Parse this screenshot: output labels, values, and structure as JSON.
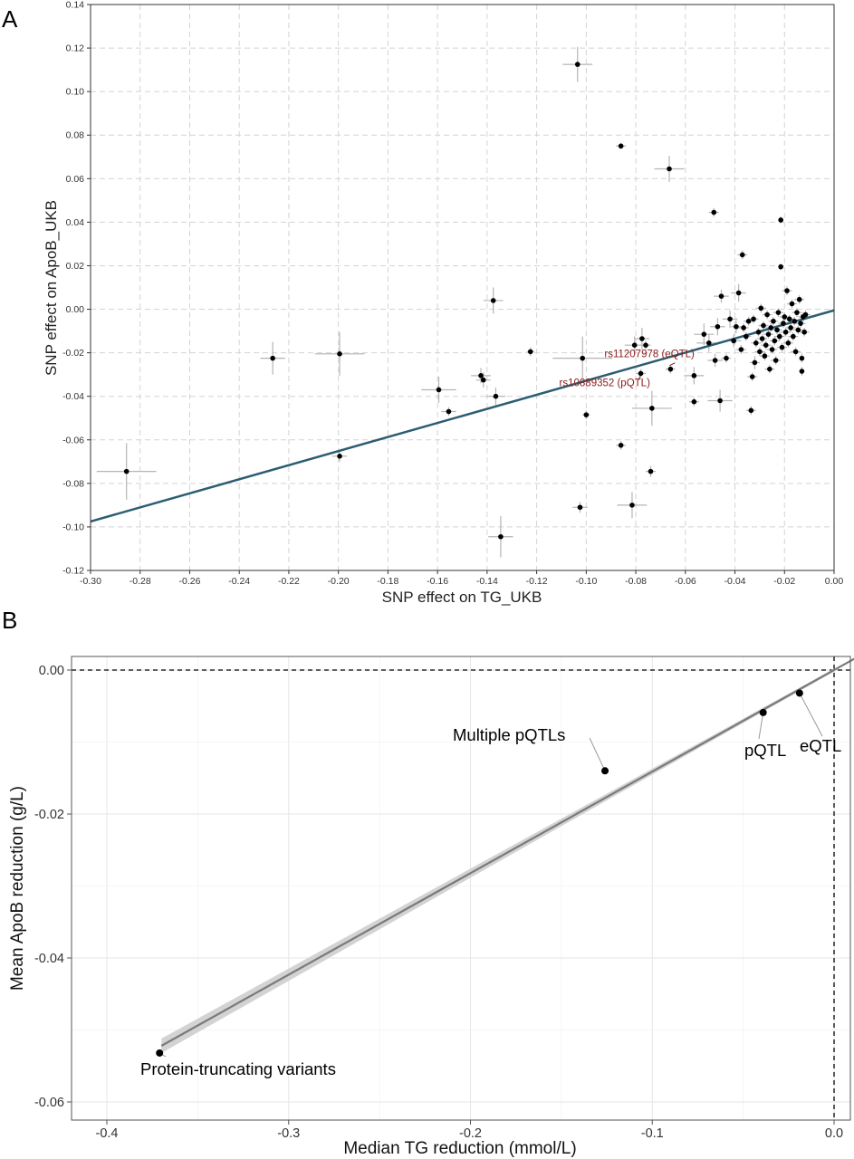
{
  "panels": {
    "a": {
      "letter": "A",
      "xlabel": "SNP effect on TG_UKB",
      "ylabel": "SNP effect on ApoB_UKB"
    },
    "b": {
      "letter": "B",
      "xlabel": "Median TG reduction (mmol/L)",
      "ylabel": "Mean ApoB reduction (g/L)"
    }
  },
  "chart_data": [
    {
      "type": "scatter",
      "title": "",
      "xlabel": "SNP effect on TG_UKB",
      "ylabel": "SNP effect on ApoB_UKB",
      "xlim": [
        -0.3,
        0.0
      ],
      "ylim": [
        -0.12,
        0.14
      ],
      "xticks": [
        -0.3,
        -0.28,
        -0.26,
        -0.24,
        -0.22,
        -0.2,
        -0.18,
        -0.16,
        -0.14,
        -0.12,
        -0.1,
        -0.08,
        -0.06,
        -0.04,
        -0.02,
        0.0
      ],
      "xtick_labels": [
        "-0.30",
        "-0.28",
        "-0.26",
        "-0.24",
        "-0.22",
        "-0.20",
        "-0.18",
        "-0.16",
        "-0.14",
        "-0.12",
        "-0.10",
        "-0.08",
        "-0.06",
        "-0.04",
        "-0.02",
        "0.00"
      ],
      "yticks": [
        -0.12,
        -0.1,
        -0.08,
        -0.06,
        -0.04,
        -0.02,
        0.0,
        0.02,
        0.04,
        0.06,
        0.08,
        0.1,
        0.12,
        0.14
      ],
      "ytick_labels": [
        "-0.12",
        "-0.10",
        "-0.08",
        "-0.06",
        "-0.04",
        "-0.02",
        "0.00",
        "0.02",
        "0.04",
        "0.06",
        "0.08",
        "0.10",
        "0.12",
        "0.14"
      ],
      "grid": true,
      "grid_style": "dashed",
      "colors": {
        "points": "#000000",
        "errorbars": "#b4b4b4",
        "fit_line": "#2b5d73",
        "annotation": "#8b1a1a",
        "grid": "#d4d4d4"
      },
      "fit_line": {
        "x": [
          -0.3,
          0.0
        ],
        "y": [
          -0.0975,
          -0.0005
        ]
      },
      "points": [
        {
          "x": -0.2855,
          "y": -0.0745,
          "xerr": 0.012,
          "yerr": 0.013
        },
        {
          "x": -0.2265,
          "y": -0.0225,
          "xerr": 0.005,
          "yerr": 0.0075
        },
        {
          "x": -0.1995,
          "y": -0.0205,
          "xerr": 0.01,
          "yerr": 0.01
        },
        {
          "x": -0.1995,
          "y": -0.0675,
          "xerr": 0.003,
          "yerr": 0.0025
        },
        {
          "x": -0.1595,
          "y": -0.037,
          "xerr": 0.007,
          "yerr": 0.006
        },
        {
          "x": -0.1555,
          "y": -0.047,
          "xerr": 0.003,
          "yerr": 0.002
        },
        {
          "x": -0.1425,
          "y": -0.0305,
          "xerr": 0.004,
          "yerr": 0.0035
        },
        {
          "x": -0.1415,
          "y": -0.0325,
          "xerr": 0.003,
          "yerr": 0.0035
        },
        {
          "x": -0.1375,
          "y": 0.004,
          "xerr": 0.004,
          "yerr": 0.006
        },
        {
          "x": -0.1365,
          "y": -0.04,
          "xerr": 0.004,
          "yerr": 0.004
        },
        {
          "x": -0.1345,
          "y": -0.1045,
          "xerr": 0.005,
          "yerr": 0.0095
        },
        {
          "x": -0.1225,
          "y": -0.0195,
          "xerr": 0.0015,
          "yerr": 0.002
        },
        {
          "x": -0.1035,
          "y": 0.1125,
          "xerr": 0.006,
          "yerr": 0.008
        },
        {
          "x": -0.1025,
          "y": -0.091,
          "xerr": 0.003,
          "yerr": 0.0025
        },
        {
          "x": -0.1015,
          "y": -0.0225,
          "xerr": 0.012,
          "yerr": 0.01
        },
        {
          "x": -0.1,
          "y": -0.0485,
          "xerr": 0.0015,
          "yerr": 0.002
        },
        {
          "x": -0.086,
          "y": -0.0625,
          "xerr": 0.002,
          "yerr": 0.002
        },
        {
          "x": -0.086,
          "y": 0.075,
          "xerr": 0.002,
          "yerr": 0.0015
        },
        {
          "x": -0.0815,
          "y": -0.09,
          "xerr": 0.006,
          "yerr": 0.006
        },
        {
          "x": -0.0805,
          "y": -0.0165,
          "xerr": 0.004,
          "yerr": 0.004
        },
        {
          "x": -0.078,
          "y": -0.0295,
          "xerr": 0.002,
          "yerr": 0.002
        },
        {
          "x": -0.0775,
          "y": -0.0135,
          "xerr": 0.003,
          "yerr": 0.005
        },
        {
          "x": -0.076,
          "y": -0.0165,
          "xerr": 0.002,
          "yerr": 0.002
        },
        {
          "x": -0.074,
          "y": -0.0745,
          "xerr": 0.002,
          "yerr": 0.0025
        },
        {
          "x": -0.0735,
          "y": -0.0455,
          "xerr": 0.008,
          "yerr": 0.008
        },
        {
          "x": -0.0665,
          "y": 0.0645,
          "xerr": 0.006,
          "yerr": 0.006
        },
        {
          "x": -0.066,
          "y": -0.0275,
          "xerr": 0.002,
          "yerr": 0.002
        },
        {
          "x": -0.0565,
          "y": -0.0425,
          "xerr": 0.002,
          "yerr": 0.002
        },
        {
          "x": -0.0565,
          "y": -0.0305,
          "xerr": 0.004,
          "yerr": 0.004
        },
        {
          "x": -0.0525,
          "y": -0.0115,
          "xerr": 0.004,
          "yerr": 0.005
        },
        {
          "x": -0.0505,
          "y": -0.0155,
          "xerr": 0.005,
          "yerr": 0.004
        },
        {
          "x": -0.0485,
          "y": 0.0445,
          "xerr": 0.002,
          "yerr": 0.002
        },
        {
          "x": -0.048,
          "y": -0.0235,
          "xerr": 0.003,
          "yerr": 0.003
        },
        {
          "x": -0.047,
          "y": -0.008,
          "xerr": 0.003,
          "yerr": 0.004
        },
        {
          "x": -0.046,
          "y": -0.042,
          "xerr": 0.005,
          "yerr": 0.005
        },
        {
          "x": -0.0455,
          "y": 0.006,
          "xerr": 0.003,
          "yerr": 0.003
        },
        {
          "x": -0.0435,
          "y": -0.0225,
          "xerr": 0.002,
          "yerr": 0.002
        },
        {
          "x": -0.042,
          "y": -0.0045,
          "xerr": 0.003,
          "yerr": 0.004
        },
        {
          "x": -0.0405,
          "y": -0.0145,
          "xerr": 0.003,
          "yerr": 0.003
        },
        {
          "x": -0.0395,
          "y": -0.008,
          "xerr": 0.002,
          "yerr": 0.003
        },
        {
          "x": -0.0385,
          "y": 0.0075,
          "xerr": 0.003,
          "yerr": 0.004
        },
        {
          "x": -0.0375,
          "y": -0.0185,
          "xerr": 0.002,
          "yerr": 0.002
        },
        {
          "x": -0.037,
          "y": 0.025,
          "xerr": 0.002,
          "yerr": 0.002
        },
        {
          "x": -0.0365,
          "y": -0.0085,
          "xerr": 0.002,
          "yerr": 0.002
        },
        {
          "x": -0.0355,
          "y": -0.0125,
          "xerr": 0.002,
          "yerr": 0.002
        },
        {
          "x": -0.0345,
          "y": -0.0055,
          "xerr": 0.002,
          "yerr": 0.002
        },
        {
          "x": -0.0335,
          "y": -0.0465,
          "xerr": 0.002,
          "yerr": 0.002
        },
        {
          "x": -0.033,
          "y": -0.031,
          "xerr": 0.002,
          "yerr": 0.002
        },
        {
          "x": -0.0325,
          "y": -0.0045,
          "xerr": 0.002,
          "yerr": 0.002
        },
        {
          "x": -0.032,
          "y": -0.0245,
          "xerr": 0.002,
          "yerr": 0.003
        },
        {
          "x": -0.0315,
          "y": -0.0155,
          "xerr": 0.002,
          "yerr": 0.002
        },
        {
          "x": -0.0305,
          "y": -0.0105,
          "xerr": 0.002,
          "yerr": 0.002
        },
        {
          "x": -0.03,
          "y": -0.0195,
          "xerr": 0.002,
          "yerr": 0.002
        },
        {
          "x": -0.0295,
          "y": 0.0005,
          "xerr": 0.002,
          "yerr": 0.002
        },
        {
          "x": -0.029,
          "y": -0.0135,
          "xerr": 0.002,
          "yerr": 0.002
        },
        {
          "x": -0.0285,
          "y": -0.0075,
          "xerr": 0.002,
          "yerr": 0.002
        },
        {
          "x": -0.028,
          "y": -0.0215,
          "xerr": 0.002,
          "yerr": 0.002
        },
        {
          "x": -0.0275,
          "y": -0.0165,
          "xerr": 0.002,
          "yerr": 0.002
        },
        {
          "x": -0.027,
          "y": -0.0025,
          "xerr": 0.002,
          "yerr": 0.002
        },
        {
          "x": -0.0265,
          "y": -0.0115,
          "xerr": 0.002,
          "yerr": 0.002
        },
        {
          "x": -0.026,
          "y": -0.0275,
          "xerr": 0.002,
          "yerr": 0.002
        },
        {
          "x": -0.0255,
          "y": -0.0085,
          "xerr": 0.002,
          "yerr": 0.002
        },
        {
          "x": -0.025,
          "y": -0.0185,
          "xerr": 0.002,
          "yerr": 0.002
        },
        {
          "x": -0.0245,
          "y": -0.0055,
          "xerr": 0.002,
          "yerr": 0.002
        },
        {
          "x": -0.024,
          "y": -0.0145,
          "xerr": 0.002,
          "yerr": 0.002
        },
        {
          "x": -0.0235,
          "y": -0.0235,
          "xerr": 0.002,
          "yerr": 0.002
        },
        {
          "x": -0.023,
          "y": -0.0095,
          "xerr": 0.002,
          "yerr": 0.002
        },
        {
          "x": -0.0225,
          "y": -0.0015,
          "xerr": 0.002,
          "yerr": 0.002
        },
        {
          "x": -0.022,
          "y": -0.0125,
          "xerr": 0.002,
          "yerr": 0.002
        },
        {
          "x": -0.0215,
          "y": 0.041,
          "xerr": 0.001,
          "yerr": 0.0015
        },
        {
          "x": -0.0215,
          "y": 0.0195,
          "xerr": 0.001,
          "yerr": 0.0015
        },
        {
          "x": -0.021,
          "y": -0.0175,
          "xerr": 0.002,
          "yerr": 0.002
        },
        {
          "x": -0.0205,
          "y": -0.0065,
          "xerr": 0.002,
          "yerr": 0.002
        },
        {
          "x": -0.02,
          "y": -0.0035,
          "xerr": 0.002,
          "yerr": 0.002
        },
        {
          "x": -0.0195,
          "y": -0.0105,
          "xerr": 0.002,
          "yerr": 0.002
        },
        {
          "x": -0.019,
          "y": 0.0085,
          "xerr": 0.002,
          "yerr": 0.002
        },
        {
          "x": -0.0185,
          "y": -0.0155,
          "xerr": 0.002,
          "yerr": 0.002
        },
        {
          "x": -0.018,
          "y": -0.0045,
          "xerr": 0.002,
          "yerr": 0.002
        },
        {
          "x": -0.0175,
          "y": -0.0085,
          "xerr": 0.002,
          "yerr": 0.002
        },
        {
          "x": -0.017,
          "y": 0.0025,
          "xerr": 0.002,
          "yerr": 0.002
        },
        {
          "x": -0.0165,
          "y": -0.0125,
          "xerr": 0.002,
          "yerr": 0.002
        },
        {
          "x": -0.016,
          "y": -0.0055,
          "xerr": 0.002,
          "yerr": 0.002
        },
        {
          "x": -0.0155,
          "y": -0.0195,
          "xerr": 0.002,
          "yerr": 0.002
        },
        {
          "x": -0.015,
          "y": -0.0015,
          "xerr": 0.002,
          "yerr": 0.002
        },
        {
          "x": -0.0145,
          "y": -0.0095,
          "xerr": 0.002,
          "yerr": 0.002
        },
        {
          "x": -0.014,
          "y": 0.0045,
          "xerr": 0.002,
          "yerr": 0.002
        },
        {
          "x": -0.0135,
          "y": -0.0065,
          "xerr": 0.002,
          "yerr": 0.002
        },
        {
          "x": -0.013,
          "y": -0.0285,
          "xerr": 0.001,
          "yerr": 0.002
        },
        {
          "x": -0.013,
          "y": -0.0225,
          "xerr": 0.001,
          "yerr": 0.002
        },
        {
          "x": -0.0125,
          "y": -0.0035,
          "xerr": 0.002,
          "yerr": 0.002
        },
        {
          "x": -0.012,
          "y": -0.0105,
          "xerr": 0.002,
          "yerr": 0.002
        },
        {
          "x": -0.0115,
          "y": -0.0025,
          "xerr": 0.002,
          "yerr": 0.002
        }
      ],
      "annotations": [
        {
          "text": "rs11207978 (eQTL)",
          "x": -0.066,
          "y": -0.0275
        },
        {
          "text": "rs10889352 (pQTL)",
          "x": -0.078,
          "y": -0.0295
        }
      ]
    },
    {
      "type": "scatter",
      "title": "",
      "xlabel": "Median TG reduction (mmol/L)",
      "ylabel": "Mean ApoB reduction (g/L)",
      "xlim": [
        -0.4,
        0.0
      ],
      "ylim": [
        -0.06,
        0.0
      ],
      "xticks": [
        -0.4,
        -0.3,
        -0.2,
        -0.1,
        0.0
      ],
      "xtick_labels": [
        "-0.4",
        "-0.3",
        "-0.2",
        "-0.1",
        "0.0"
      ],
      "yticks": [
        -0.06,
        -0.04,
        -0.02,
        0.0
      ],
      "ytick_labels": [
        "-0.06",
        "-0.04",
        "-0.02",
        "0.00"
      ],
      "grid": true,
      "grid_style": "solid-light",
      "colors": {
        "points": "#000000",
        "fit_line": "#7a7a7a",
        "confidence_band": "#d3d3d3",
        "reference_lines": "#000000"
      },
      "reference_lines": {
        "x": 0.0,
        "y": 0.0,
        "style": "dashed"
      },
      "fit_line": {
        "x": [
          -0.37,
          0.0
        ],
        "y": [
          -0.0522,
          0.0
        ]
      },
      "confidence_band": {
        "x": [
          -0.37,
          0.0
        ],
        "lower": [
          -0.0532,
          -0.0002
        ],
        "upper": [
          -0.0512,
          0.0002
        ]
      },
      "points": [
        {
          "label": "Protein-truncating variants",
          "x": -0.371,
          "y": -0.0532
        },
        {
          "label": "Multiple pQTLs",
          "x": -0.126,
          "y": -0.014
        },
        {
          "label": "pQTL",
          "x": -0.039,
          "y": -0.0059
        },
        {
          "label": "eQTL",
          "x": -0.019,
          "y": -0.0032
        }
      ]
    }
  ]
}
